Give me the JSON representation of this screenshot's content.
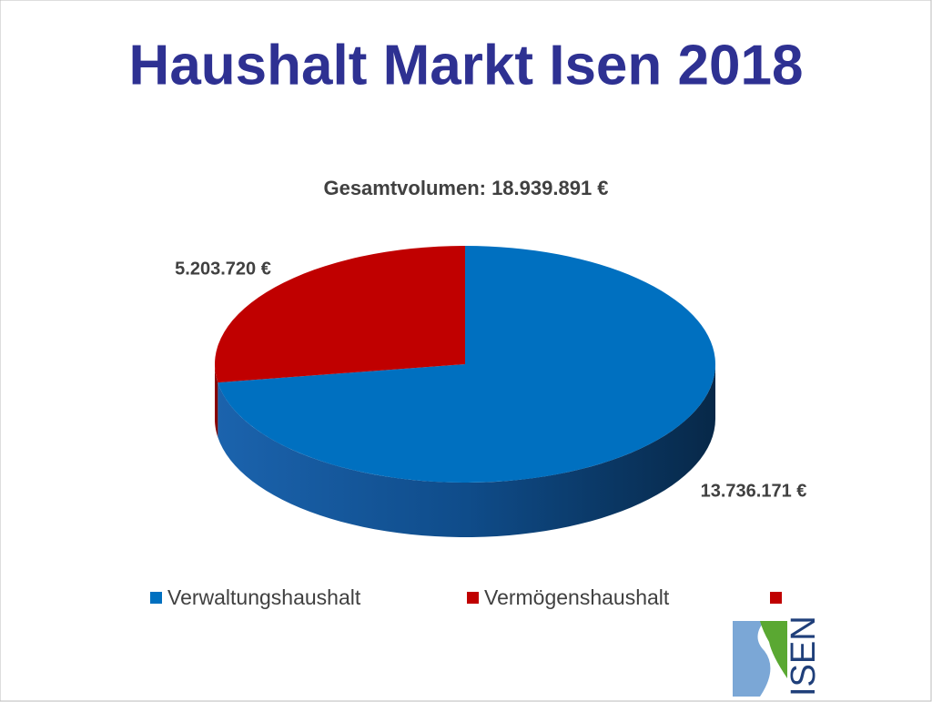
{
  "chart_data": {
    "type": "pie",
    "title": "Haushalt Markt Isen 2018",
    "subtitle": "Gesamtvolumen: 18.939.891 €",
    "categories": [
      "Verwaltungshaushalt",
      "Vermögenshaushalt"
    ],
    "values": [
      13736171,
      5203720
    ],
    "value_labels": [
      "13.736.171 €",
      "5.203.720 €"
    ],
    "colors": [
      "#0070c0",
      "#c00000"
    ],
    "legend": "bottom"
  },
  "logo": {
    "text": "ISEN"
  }
}
